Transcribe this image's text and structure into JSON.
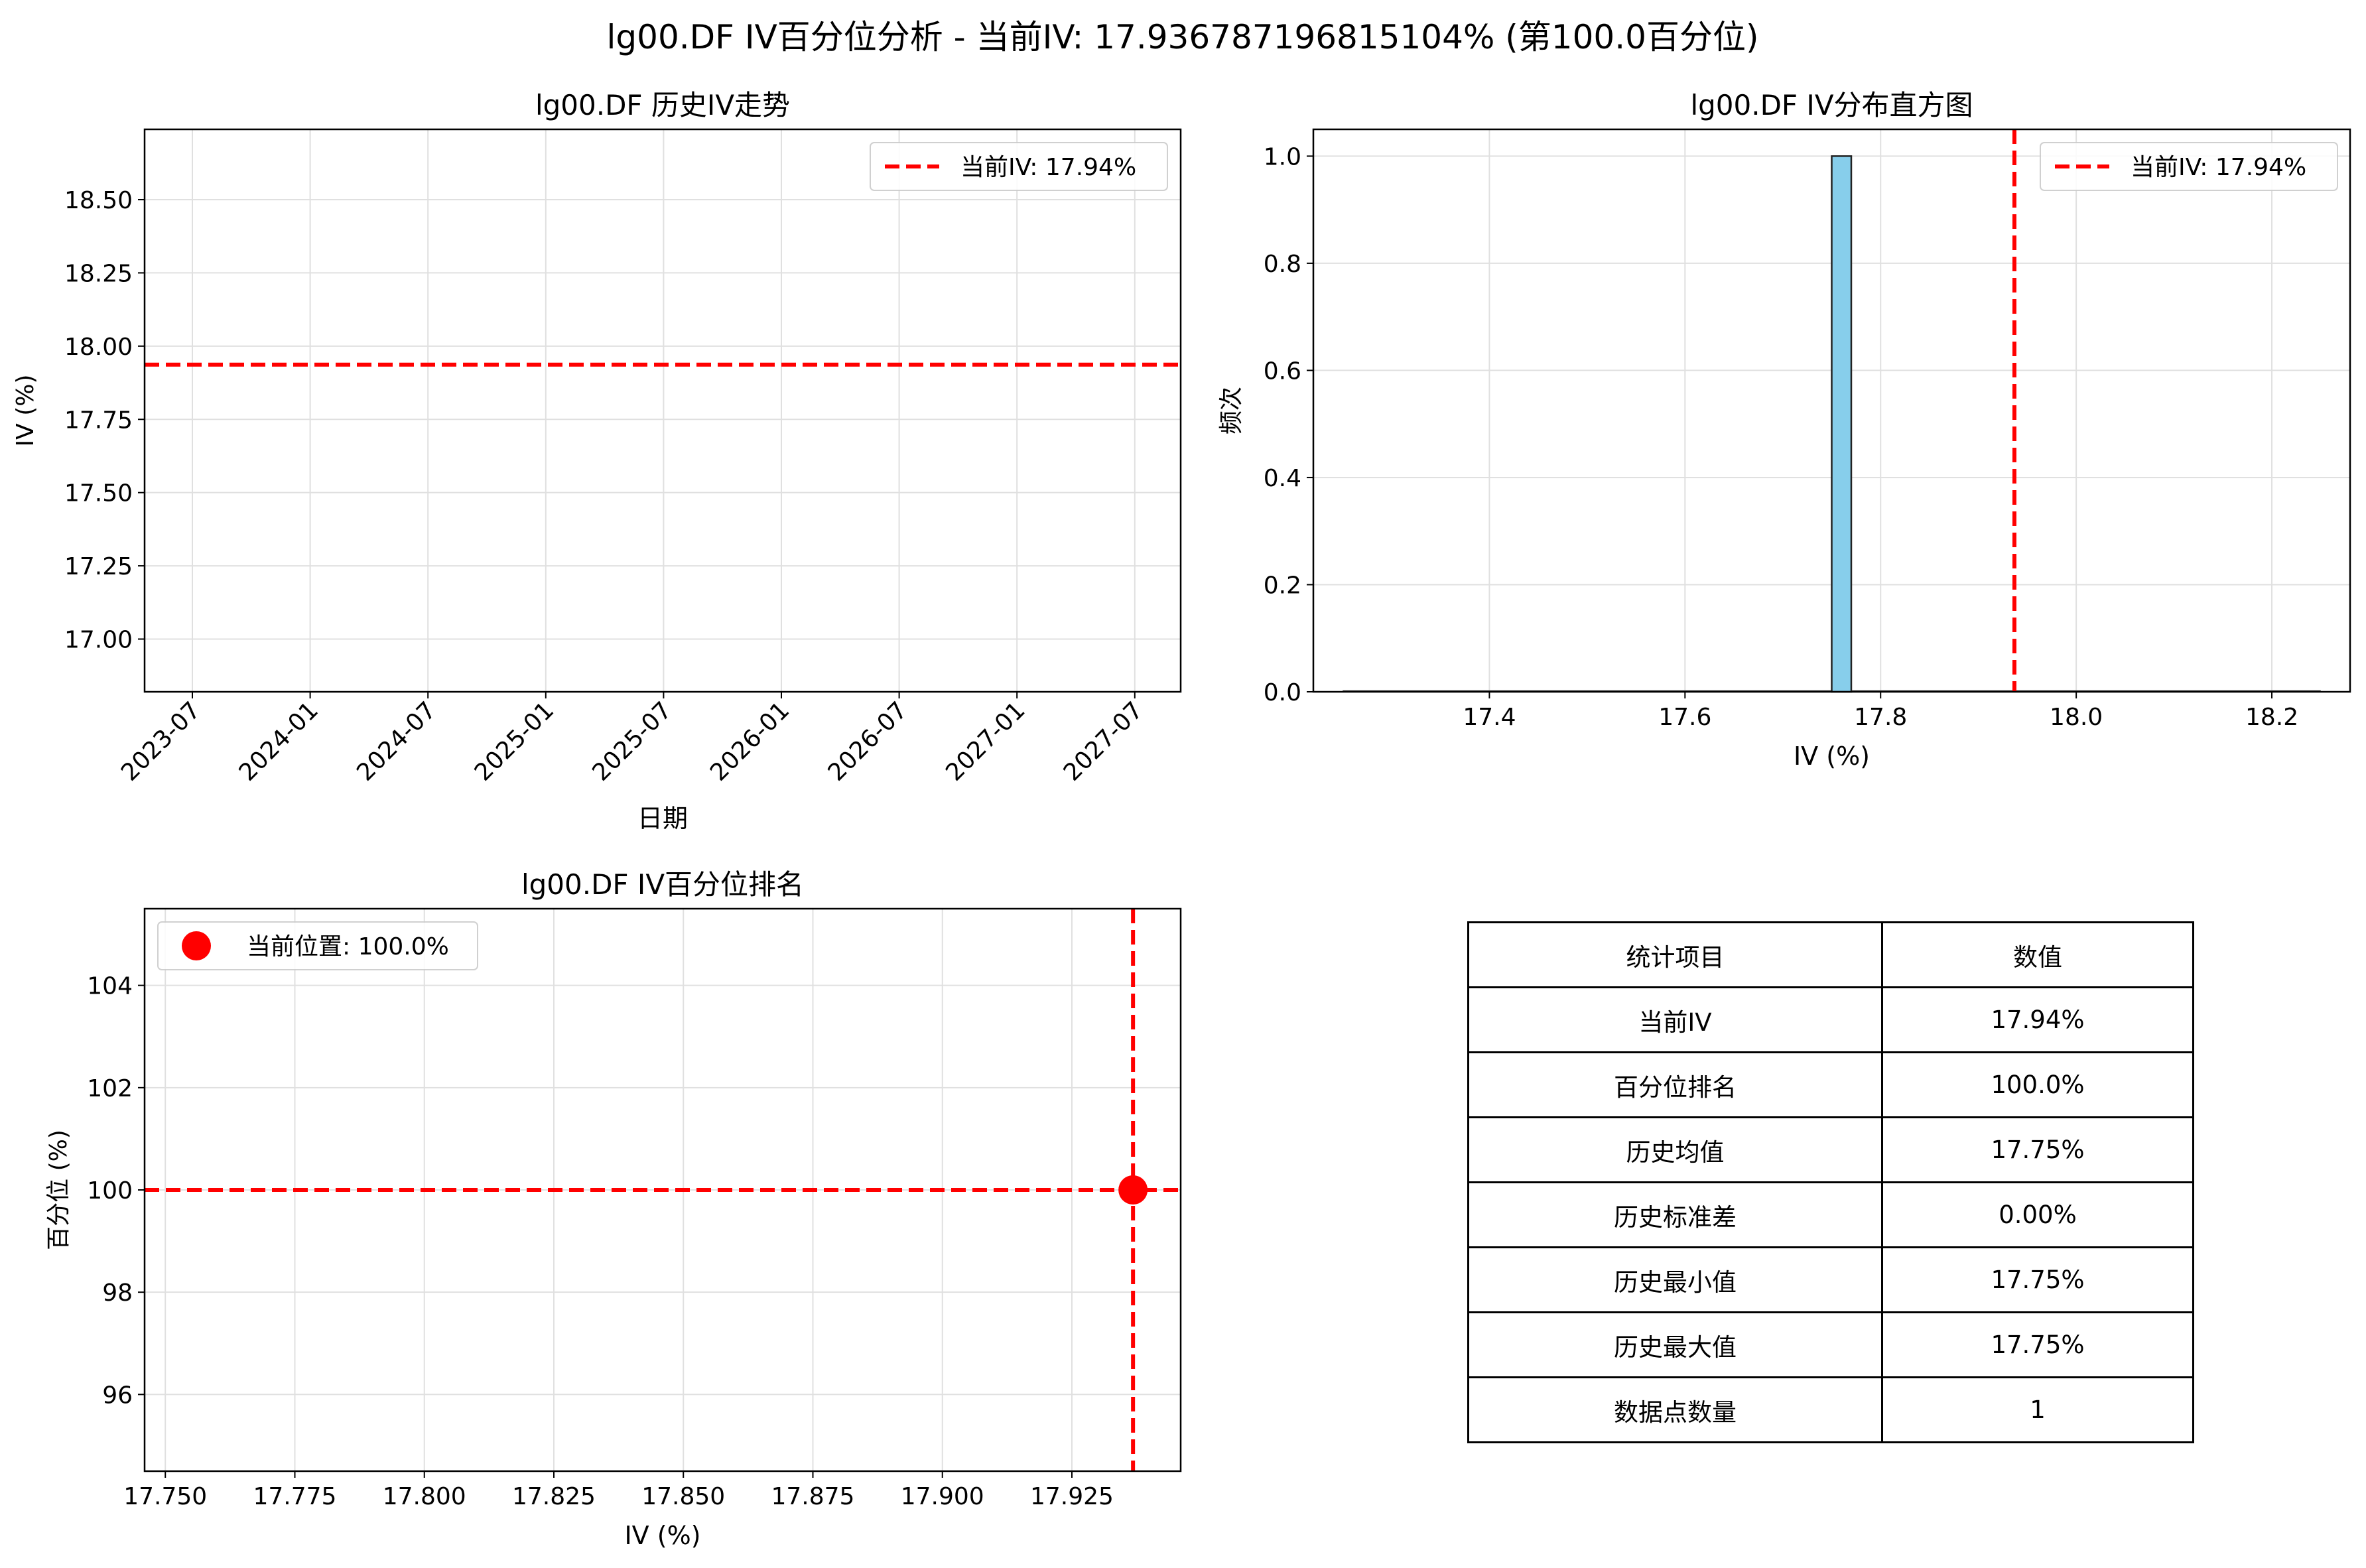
{
  "figure": {
    "suptitle": "lg00.DF IV百分位分析 - 当前IV: 17.936787196815104% (第100.0百分位)"
  },
  "colors": {
    "current_line": "#ff0000",
    "hist_bar": "#87ceeb",
    "grid": "#e0e0e0"
  },
  "chart_data": [
    {
      "type": "line",
      "title": "lg00.DF 历史IV走势",
      "xlabel": "日期",
      "ylabel": "IV (%)",
      "x_tick_labels": [
        "2023-07",
        "2024-01",
        "2024-07",
        "2025-01",
        "2025-07",
        "2026-01",
        "2026-07",
        "2027-01",
        "2027-07"
      ],
      "y_ticks": [
        17.0,
        17.25,
        17.5,
        17.75,
        18.0,
        18.25,
        18.5
      ],
      "y_tick_labels": [
        "17.00",
        "17.25",
        "17.50",
        "17.75",
        "18.00",
        "18.25",
        "18.50"
      ],
      "ylim": [
        16.82,
        18.74
      ],
      "hlines": [
        {
          "y": 17.9368,
          "style": "dashed",
          "color": "#ff0000",
          "label": "当前IV: 17.94%"
        }
      ],
      "legend": {
        "position": "top-right",
        "entries": [
          "当前IV: 17.94%"
        ]
      },
      "grid": true,
      "series": []
    },
    {
      "type": "bar",
      "title": "lg00.DF IV分布直方图",
      "xlabel": "IV (%)",
      "ylabel": "频次",
      "xlim": [
        17.22,
        18.28
      ],
      "ylim": [
        0,
        1.05
      ],
      "x_ticks": [
        17.4,
        17.6,
        17.8,
        18.0,
        18.2
      ],
      "x_tick_labels": [
        "17.4",
        "17.6",
        "17.8",
        "18.0",
        "18.2"
      ],
      "y_ticks": [
        0.0,
        0.2,
        0.4,
        0.6,
        0.8,
        1.0
      ],
      "y_tick_labels": [
        "0.0",
        "0.2",
        "0.4",
        "0.6",
        "0.8",
        "1.0"
      ],
      "bars": [
        {
          "x0": 17.75,
          "x1": 17.77,
          "value": 1
        }
      ],
      "baseline": [
        17.25,
        18.25
      ],
      "vlines": [
        {
          "x": 17.9368,
          "style": "dashed",
          "color": "#ff0000",
          "label": "当前IV: 17.94%"
        }
      ],
      "legend": {
        "position": "top-right",
        "entries": [
          "当前IV: 17.94%"
        ]
      },
      "grid": true
    },
    {
      "type": "scatter",
      "title": "lg00.DF IV百分位排名",
      "xlabel": "IV (%)",
      "ylabel": "百分位 (%)",
      "xlim": [
        17.746,
        17.946
      ],
      "ylim": [
        94.5,
        105.5
      ],
      "x_ticks": [
        17.75,
        17.775,
        17.8,
        17.825,
        17.85,
        17.875,
        17.9,
        17.925
      ],
      "x_tick_labels": [
        "17.750",
        "17.775",
        "17.800",
        "17.825",
        "17.850",
        "17.875",
        "17.900",
        "17.925"
      ],
      "y_ticks": [
        96,
        98,
        100,
        102,
        104
      ],
      "y_tick_labels": [
        "96",
        "98",
        "100",
        "102",
        "104"
      ],
      "points": [
        {
          "x": 17.9368,
          "y": 100.0,
          "color": "#ff0000"
        }
      ],
      "vlines": [
        {
          "x": 17.9368,
          "style": "dashed",
          "color": "#ff0000"
        }
      ],
      "hlines": [
        {
          "y": 100.0,
          "style": "dashed",
          "color": "#ff0000"
        }
      ],
      "legend": {
        "position": "top-left",
        "entries": [
          "当前位置: 100.0%"
        ]
      },
      "grid": true
    },
    {
      "type": "table",
      "header": [
        "统计项目",
        "数值"
      ],
      "rows": [
        [
          "当前IV",
          "17.94%"
        ],
        [
          "百分位排名",
          "100.0%"
        ],
        [
          "历史均值",
          "17.75%"
        ],
        [
          "历史标准差",
          "0.00%"
        ],
        [
          "历史最小值",
          "17.75%"
        ],
        [
          "历史最大值",
          "17.75%"
        ],
        [
          "数据点数量",
          "1"
        ]
      ]
    }
  ]
}
